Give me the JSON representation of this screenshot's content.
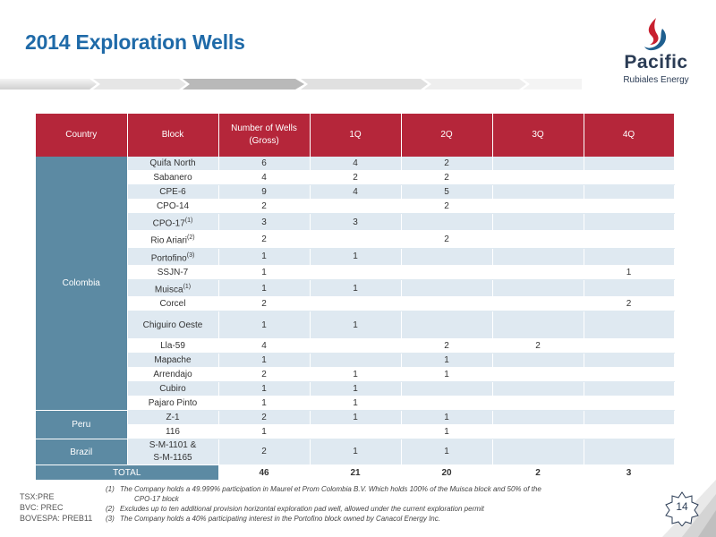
{
  "header": {
    "title": "2014 Exploration Wells"
  },
  "logo": {
    "name": "Pacific",
    "subtitle": "Rubiales Energy"
  },
  "table": {
    "headers": {
      "country": "Country",
      "block": "Block",
      "wells_line1": "Number of Wells",
      "wells_line2": "(Gross)",
      "q1": "1Q",
      "q2": "2Q",
      "q3": "3Q",
      "q4": "4Q"
    },
    "countries": {
      "colombia": "Colombia",
      "peru": "Peru",
      "brazil": "Brazil"
    },
    "rows": [
      {
        "block": "Quifa North",
        "sup": "",
        "wells": "6",
        "q1": "4",
        "q2": "2",
        "q3": "",
        "q4": ""
      },
      {
        "block": "Sabanero",
        "sup": "",
        "wells": "4",
        "q1": "2",
        "q2": "2",
        "q3": "",
        "q4": ""
      },
      {
        "block": "CPE-6",
        "sup": "",
        "wells": "9",
        "q1": "4",
        "q2": "5",
        "q3": "",
        "q4": ""
      },
      {
        "block": "CPO-14",
        "sup": "",
        "wells": "2",
        "q1": "",
        "q2": "2",
        "q3": "",
        "q4": ""
      },
      {
        "block": "CPO-17",
        "sup": "(1)",
        "wells": "3",
        "q1": "3",
        "q2": "",
        "q3": "",
        "q4": ""
      },
      {
        "block": "Rio Ariari",
        "sup": "(2)",
        "wells": "2",
        "q1": "",
        "q2": "2",
        "q3": "",
        "q4": ""
      },
      {
        "block": "Portofino",
        "sup": "(3)",
        "wells": "1",
        "q1": "1",
        "q2": "",
        "q3": "",
        "q4": ""
      },
      {
        "block": "SSJN-7",
        "sup": "",
        "wells": "1",
        "q1": "",
        "q2": "",
        "q3": "",
        "q4": "1"
      },
      {
        "block": "Muisca",
        "sup": "(1)",
        "wells": "1",
        "q1": "1",
        "q2": "",
        "q3": "",
        "q4": ""
      },
      {
        "block": "Corcel",
        "sup": "",
        "wells": "2",
        "q1": "",
        "q2": "",
        "q3": "",
        "q4": "2"
      },
      {
        "block": "Chiguiro Oeste",
        "sup": "",
        "wells": "1",
        "q1": "1",
        "q2": "",
        "q3": "",
        "q4": ""
      },
      {
        "block": "Lla-59",
        "sup": "",
        "wells": "4",
        "q1": "",
        "q2": "2",
        "q3": "2",
        "q4": ""
      },
      {
        "block": "Mapache",
        "sup": "",
        "wells": "1",
        "q1": "",
        "q2": "1",
        "q3": "",
        "q4": ""
      },
      {
        "block": "Arrendajo",
        "sup": "",
        "wells": "2",
        "q1": "1",
        "q2": "1",
        "q3": "",
        "q4": ""
      },
      {
        "block": "Cubiro",
        "sup": "",
        "wells": "1",
        "q1": "1",
        "q2": "",
        "q3": "",
        "q4": ""
      },
      {
        "block": "Pajaro Pinto",
        "sup": "",
        "wells": "1",
        "q1": "1",
        "q2": "",
        "q3": "",
        "q4": ""
      },
      {
        "block": "Z-1",
        "sup": "",
        "wells": "2",
        "q1": "1",
        "q2": "1",
        "q3": "",
        "q4": ""
      },
      {
        "block": "116",
        "sup": "",
        "wells": "1",
        "q1": "",
        "q2": "1",
        "q3": "",
        "q4": ""
      },
      {
        "block_line1": "S-M-1101 &",
        "block_line2": "S-M-1165",
        "wells": "2",
        "q1": "1",
        "q2": "1",
        "q3": "",
        "q4": ""
      }
    ],
    "total": {
      "label": "TOTAL",
      "wells": "46",
      "q1": "21",
      "q2": "20",
      "q3": "2",
      "q4": "3"
    }
  },
  "footer": {
    "tickers": [
      "TSX:PRE",
      "BVC: PREC",
      "BOVESPA: PREB11"
    ],
    "notes": [
      {
        "num": "(1)",
        "text": "The Company holds a 49.999% participation in Maurel et Prom Colombia B.V. Which holds 100% of the Muisca block and 50% of the",
        "text2": "CPO-17 block"
      },
      {
        "num": "(2)",
        "text": "Excludes up to ten additional provision horizontal exploration pad well, allowed under the current exploration permit"
      },
      {
        "num": "(3)",
        "text": "The Company holds a 40% participating interest in the Portofino block owned by Canacol Energy Inc."
      }
    ],
    "page_number": "14"
  },
  "colors": {
    "title": "#1f6aa8",
    "header_bg": "#b5263a",
    "country_bg": "#5c8aa3",
    "row_alt": "#dfe9f1"
  }
}
